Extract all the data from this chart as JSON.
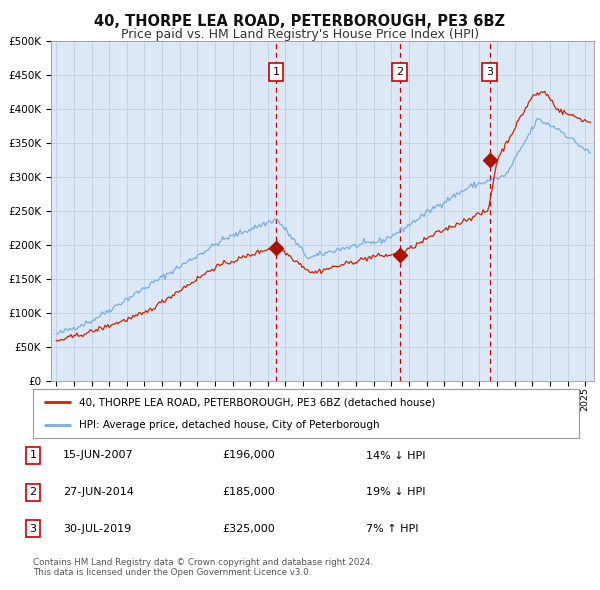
{
  "title": "40, THORPE LEA ROAD, PETERBOROUGH, PE3 6BZ",
  "subtitle": "Price paid vs. HM Land Registry's House Price Index (HPI)",
  "title_fontsize": 10.5,
  "subtitle_fontsize": 9.0,
  "background_color": "#ffffff",
  "plot_bg_color": "#dce8f5",
  "ylim": [
    0,
    500000
  ],
  "yticks": [
    0,
    50000,
    100000,
    150000,
    200000,
    250000,
    300000,
    350000,
    400000,
    450000,
    500000
  ],
  "ytick_labels": [
    "£0",
    "£50K",
    "£100K",
    "£150K",
    "£200K",
    "£250K",
    "£300K",
    "£350K",
    "£400K",
    "£450K",
    "£500K"
  ],
  "xlim_start": 1994.7,
  "xlim_end": 2025.5,
  "xtick_years": [
    1995,
    1996,
    1997,
    1998,
    1999,
    2000,
    2001,
    2002,
    2003,
    2004,
    2005,
    2006,
    2007,
    2008,
    2009,
    2010,
    2011,
    2012,
    2013,
    2014,
    2015,
    2016,
    2017,
    2018,
    2019,
    2020,
    2021,
    2022,
    2023,
    2024,
    2025
  ],
  "hpi_color": "#7aade0",
  "price_color": "#cc2200",
  "marker_color": "#aa1100",
  "vline_color": "#cc0000",
  "sale_dates": [
    2007.458,
    2014.49,
    2019.58
  ],
  "sale_prices": [
    196000,
    185000,
    325000
  ],
  "sale_labels": [
    "1",
    "2",
    "3"
  ],
  "legend_entries": [
    "40, THORPE LEA ROAD, PETERBOROUGH, PE3 6BZ (detached house)",
    "HPI: Average price, detached house, City of Peterborough"
  ],
  "table_rows": [
    [
      "1",
      "15-JUN-2007",
      "£196,000",
      "14% ↓ HPI"
    ],
    [
      "2",
      "27-JUN-2014",
      "£185,000",
      "19% ↓ HPI"
    ],
    [
      "3",
      "30-JUL-2019",
      "£325,000",
      "7% ↑ HPI"
    ]
  ],
  "footnote": "Contains HM Land Registry data © Crown copyright and database right 2024.\nThis data is licensed under the Open Government Licence v3.0.",
  "grid_color": "#b0c8e0",
  "noise_seed": 42
}
